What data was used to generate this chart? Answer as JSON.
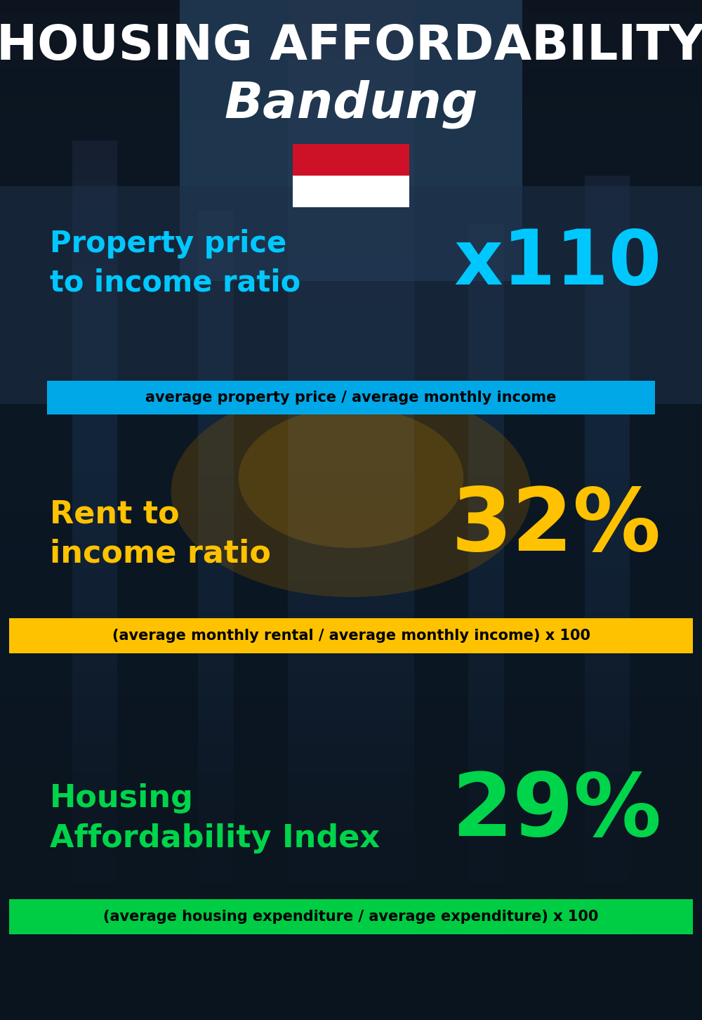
{
  "title_line1": "HOUSING AFFORDABILITY",
  "title_line2": "Bandung",
  "bg_color": "#0d1b26",
  "section1_label": "Property price\nto income ratio",
  "section1_value": "x110",
  "section1_label_color": "#00c8ff",
  "section1_value_color": "#00c8ff",
  "section1_formula": "average property price / average monthly income",
  "section1_formula_bg": "#00a8e8",
  "section1_formula_color": "#000000",
  "section2_label": "Rent to\nincome ratio",
  "section2_value": "32%",
  "section2_label_color": "#ffc200",
  "section2_value_color": "#ffc200",
  "section2_formula": "(average monthly rental / average monthly income) x 100",
  "section2_formula_bg": "#ffc200",
  "section2_formula_color": "#000000",
  "section3_label": "Housing\nAffordability Index",
  "section3_value": "29%",
  "section3_label_color": "#00d44a",
  "section3_value_color": "#00d44a",
  "section3_formula": "(average housing expenditure / average expenditure) x 100",
  "section3_formula_bg": "#00cc44",
  "section3_formula_color": "#000000",
  "flag_red": "#ce1126",
  "flag_white": "#ffffff",
  "white": "#ffffff",
  "panel1_color": "#1a2f42",
  "panel1_alpha": 0.7,
  "figw": 10.0,
  "figh": 14.52
}
